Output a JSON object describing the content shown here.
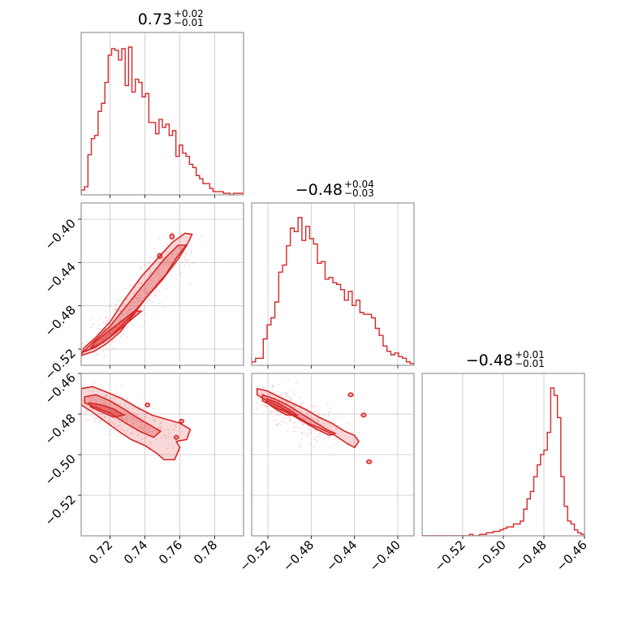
{
  "colors": {
    "series": "#d62728",
    "fill": "#d62728",
    "grid": "#c8c8c8",
    "axis": "#808080"
  },
  "chart_data": {
    "type": "corner",
    "parameters": [
      "p0",
      "p1",
      "p2"
    ],
    "grid": true,
    "titles": [
      {
        "median": "0.73",
        "plus": "+0.02",
        "minus": "−0.01"
      },
      {
        "median": "−0.48",
        "plus": "+0.04",
        "minus": "−0.03"
      },
      {
        "median": "−0.48",
        "plus": "+0.01",
        "minus": "−0.01"
      }
    ],
    "ranges": [
      [
        0.7035,
        0.7965
      ],
      [
        -0.535,
        -0.385
      ],
      [
        -0.54,
        -0.46
      ]
    ],
    "ticks": [
      {
        "values": [
          0.72,
          0.74,
          0.76,
          0.78
        ],
        "labels": [
          "0.72",
          "0.74",
          "0.76",
          "0.78"
        ]
      },
      {
        "values": [
          -0.52,
          -0.48,
          -0.44,
          -0.4
        ],
        "labels": [
          "−0.52",
          "−0.48",
          "−0.44",
          "−0.40"
        ]
      },
      {
        "values": [
          -0.52,
          -0.5,
          -0.48,
          -0.46
        ],
        "labels": [
          "−0.52",
          "−0.50",
          "−0.48",
          "−0.46"
        ]
      }
    ],
    "histograms": [
      {
        "bins": [
          0.7035,
          0.7965
        ],
        "values": [
          3,
          5,
          25,
          35,
          37,
          52,
          57,
          70,
          87,
          91,
          90,
          84,
          91,
          68,
          92,
          64,
          72,
          70,
          61,
          63,
          45,
          45,
          38,
          47,
          42,
          44,
          37,
          40,
          24,
          31,
          26,
          24,
          19,
          17,
          12,
          10,
          7,
          7,
          4,
          2,
          2,
          2,
          1,
          1,
          0,
          1,
          1,
          1
        ]
      },
      {
        "bins": [
          -0.535,
          -0.385
        ],
        "values": [
          2,
          4,
          4,
          15,
          23,
          27,
          36,
          53,
          57,
          68,
          78,
          76,
          84,
          71,
          79,
          72,
          69,
          58,
          59,
          49,
          50,
          47,
          46,
          43,
          37,
          42,
          34,
          37,
          30,
          29,
          29,
          27,
          21,
          17,
          11,
          8,
          6,
          7,
          5,
          4,
          2,
          1
        ]
      },
      {
        "bins": [
          -0.54,
          -0.46
        ],
        "values": [
          0,
          0,
          0,
          0,
          0,
          0,
          0,
          0,
          0,
          0,
          0,
          0,
          0,
          0,
          1,
          0,
          0,
          1,
          1,
          2,
          2,
          3,
          3,
          4,
          5,
          6,
          6,
          8,
          8,
          10,
          18,
          25,
          30,
          40,
          48,
          55,
          58,
          70,
          100,
          95,
          80,
          40,
          20,
          10,
          8,
          4,
          2,
          1
        ]
      }
    ],
    "contours": [
      {
        "x_param": 0,
        "y_param": 1,
        "outer": [
          [
            0.7035,
            -0.526
          ],
          [
            0.711,
            -0.522
          ],
          [
            0.718,
            -0.515
          ],
          [
            0.726,
            -0.504
          ],
          [
            0.734,
            -0.487
          ],
          [
            0.743,
            -0.468
          ],
          [
            0.752,
            -0.451
          ],
          [
            0.758,
            -0.436
          ],
          [
            0.765,
            -0.421
          ],
          [
            0.767,
            -0.414
          ],
          [
            0.763,
            -0.413
          ],
          [
            0.756,
            -0.421
          ],
          [
            0.748,
            -0.435
          ],
          [
            0.738,
            -0.453
          ],
          [
            0.728,
            -0.475
          ],
          [
            0.72,
            -0.495
          ],
          [
            0.712,
            -0.509
          ],
          [
            0.705,
            -0.519
          ]
        ],
        "inner": [
          [
            0.7045,
            -0.523
          ],
          [
            0.712,
            -0.518
          ],
          [
            0.72,
            -0.509
          ],
          [
            0.73,
            -0.493
          ],
          [
            0.74,
            -0.474
          ],
          [
            0.75,
            -0.456
          ],
          [
            0.759,
            -0.437
          ],
          [
            0.764,
            -0.424
          ],
          [
            0.759,
            -0.424
          ],
          [
            0.751,
            -0.437
          ],
          [
            0.74,
            -0.459
          ],
          [
            0.73,
            -0.479
          ],
          [
            0.72,
            -0.499
          ],
          [
            0.71,
            -0.514
          ]
        ],
        "core": [
          [
            0.709,
            -0.519
          ],
          [
            0.716,
            -0.514
          ],
          [
            0.724,
            -0.504
          ],
          [
            0.732,
            -0.493
          ],
          [
            0.738,
            -0.485
          ],
          [
            0.734,
            -0.485
          ],
          [
            0.726,
            -0.495
          ],
          [
            0.718,
            -0.505
          ],
          [
            0.711,
            -0.514
          ]
        ],
        "islands": [
          [
            0.7485,
            -0.434,
            0.0012,
            0.0022
          ],
          [
            0.7555,
            -0.416,
            0.0012,
            0.0022
          ]
        ]
      },
      {
        "x_param": 0,
        "y_param": 2,
        "outer": [
          [
            0.7035,
            -0.4675
          ],
          [
            0.71,
            -0.4665
          ],
          [
            0.719,
            -0.4695
          ],
          [
            0.727,
            -0.4725
          ],
          [
            0.735,
            -0.4765
          ],
          [
            0.744,
            -0.4805
          ],
          [
            0.752,
            -0.4825
          ],
          [
            0.76,
            -0.4845
          ],
          [
            0.766,
            -0.4875
          ],
          [
            0.764,
            -0.4925
          ],
          [
            0.758,
            -0.4935
          ],
          [
            0.76,
            -0.4965
          ],
          [
            0.757,
            -0.5025
          ],
          [
            0.751,
            -0.5025
          ],
          [
            0.747,
            -0.4995
          ],
          [
            0.74,
            -0.4955
          ],
          [
            0.732,
            -0.4925
          ],
          [
            0.725,
            -0.4885
          ],
          [
            0.717,
            -0.4835
          ],
          [
            0.709,
            -0.4785
          ],
          [
            0.7035,
            -0.4755
          ]
        ],
        "inner": [
          [
            0.7055,
            -0.4715
          ],
          [
            0.712,
            -0.4705
          ],
          [
            0.72,
            -0.4735
          ],
          [
            0.728,
            -0.4775
          ],
          [
            0.735,
            -0.4815
          ],
          [
            0.743,
            -0.4855
          ],
          [
            0.749,
            -0.4885
          ],
          [
            0.745,
            -0.4915
          ],
          [
            0.737,
            -0.4885
          ],
          [
            0.729,
            -0.4845
          ],
          [
            0.72,
            -0.4795
          ],
          [
            0.711,
            -0.4765
          ],
          [
            0.7055,
            -0.4745
          ]
        ],
        "core": [
          [
            0.708,
            -0.4745
          ],
          [
            0.715,
            -0.4755
          ],
          [
            0.722,
            -0.4775
          ],
          [
            0.728,
            -0.4805
          ],
          [
            0.722,
            -0.4815
          ],
          [
            0.714,
            -0.4785
          ],
          [
            0.709,
            -0.4765
          ]
        ],
        "islands": [
          [
            0.7415,
            -0.4755,
            0.0012,
            0.0009
          ],
          [
            0.761,
            -0.4835,
            0.0012,
            0.0009
          ],
          [
            0.758,
            -0.4915,
            0.0012,
            0.0009
          ]
        ]
      },
      {
        "x_param": 1,
        "y_param": 2,
        "outer": [
          [
            -0.53,
            -0.4675
          ],
          [
            -0.521,
            -0.4685
          ],
          [
            -0.51,
            -0.4715
          ],
          [
            -0.498,
            -0.4745
          ],
          [
            -0.486,
            -0.4775
          ],
          [
            -0.473,
            -0.4815
          ],
          [
            -0.461,
            -0.4845
          ],
          [
            -0.449,
            -0.4885
          ],
          [
            -0.44,
            -0.4905
          ],
          [
            -0.436,
            -0.4935
          ],
          [
            -0.44,
            -0.4965
          ],
          [
            -0.447,
            -0.4945
          ],
          [
            -0.458,
            -0.4905
          ],
          [
            -0.47,
            -0.4875
          ],
          [
            -0.483,
            -0.4845
          ],
          [
            -0.496,
            -0.4805
          ],
          [
            -0.509,
            -0.4765
          ],
          [
            -0.521,
            -0.4735
          ],
          [
            -0.53,
            -0.4705
          ]
        ],
        "inner": [
          [
            -0.525,
            -0.4705
          ],
          [
            -0.514,
            -0.4725
          ],
          [
            -0.502,
            -0.4755
          ],
          [
            -0.49,
            -0.4795
          ],
          [
            -0.478,
            -0.4835
          ],
          [
            -0.466,
            -0.4875
          ],
          [
            -0.458,
            -0.4895
          ],
          [
            -0.463,
            -0.4905
          ],
          [
            -0.475,
            -0.4875
          ],
          [
            -0.488,
            -0.4835
          ],
          [
            -0.501,
            -0.4795
          ],
          [
            -0.514,
            -0.4765
          ],
          [
            -0.525,
            -0.4735
          ]
        ],
        "core": [
          [
            -0.521,
            -0.4725
          ],
          [
            -0.511,
            -0.4745
          ],
          [
            -0.501,
            -0.4775
          ],
          [
            -0.493,
            -0.4805
          ],
          [
            -0.503,
            -0.4805
          ],
          [
            -0.513,
            -0.4775
          ],
          [
            -0.521,
            -0.4745
          ]
        ],
        "islands": [
          [
            -0.4315,
            -0.4805,
            0.0022,
            0.0009
          ],
          [
            -0.4265,
            -0.5035,
            0.0022,
            0.0009
          ],
          [
            -0.4435,
            -0.4705,
            0.0022,
            0.0009
          ]
        ]
      }
    ]
  }
}
